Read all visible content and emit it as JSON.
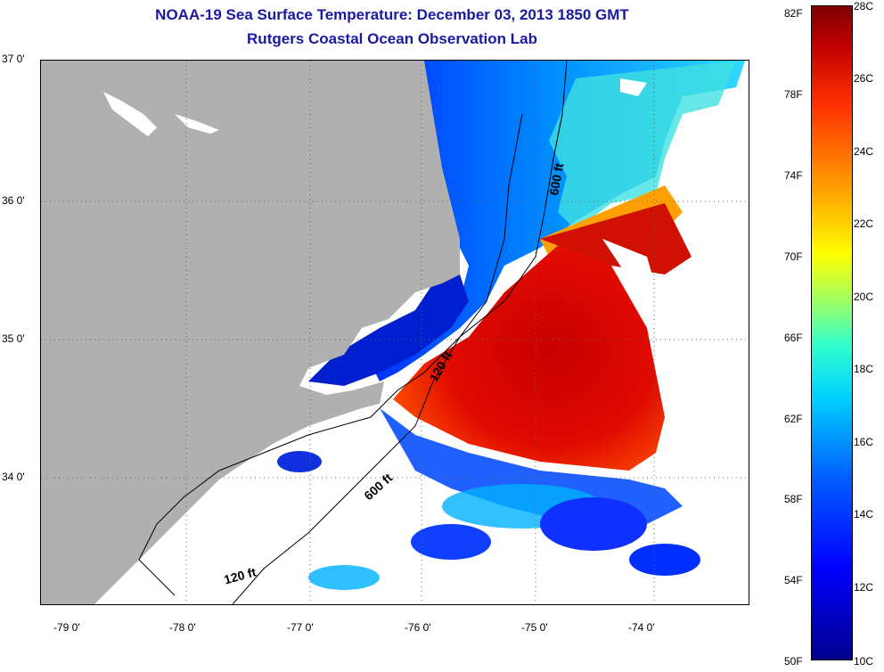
{
  "title": {
    "line1": "NOAA-19 Sea Surface Temperature:  December 03, 2013 1850 GMT",
    "line2": "Rutgers Coastal Ocean Observation Lab"
  },
  "map": {
    "lat_labels": [
      "37 0'",
      "36 0'",
      "35 0'",
      "34 0'"
    ],
    "lon_labels": [
      "-79 0'",
      "-78 0'",
      "-77 0'",
      "-76 0'",
      "-75 0'",
      "-74 0'"
    ],
    "isobath_labels": [
      "600 ft",
      "120 ft",
      "600 ft",
      "120 ft"
    ],
    "land_color": "#b0b0b0",
    "nodata_color": "#ffffff"
  },
  "colorbar": {
    "fahrenheit": [
      "82F",
      "78F",
      "74F",
      "70F",
      "66F",
      "62F",
      "58F",
      "54F",
      "50F"
    ],
    "celsius": [
      "28C",
      "26C",
      "24C",
      "22C",
      "20C",
      "18C",
      "16C",
      "14C",
      "12C",
      "10C"
    ],
    "range_c": [
      10,
      28
    ]
  }
}
